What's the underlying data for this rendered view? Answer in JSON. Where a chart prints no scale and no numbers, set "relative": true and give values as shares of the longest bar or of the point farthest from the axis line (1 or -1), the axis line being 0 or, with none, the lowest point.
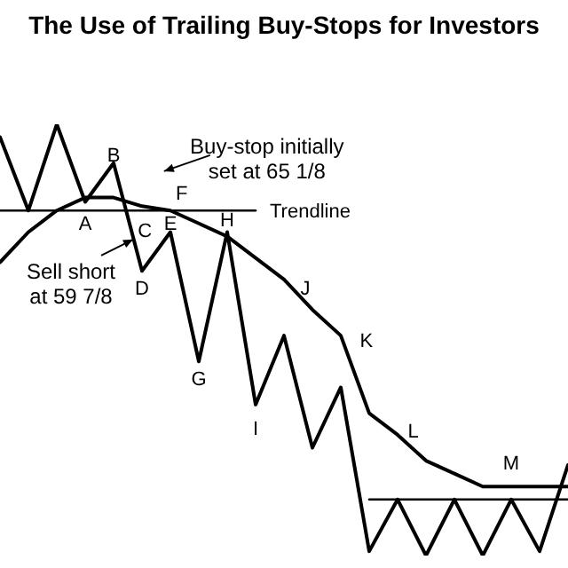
{
  "chart_data": {
    "type": "line",
    "title": "The Use of Trailing Buy-Stops for Investors",
    "relative": true,
    "legend": false,
    "marker": "none",
    "line_style": "solid",
    "categories": [
      null,
      null,
      null,
      null,
      null,
      null,
      null,
      null,
      null,
      null,
      null,
      null,
      null,
      null,
      null,
      null,
      null,
      null,
      null,
      null,
      null
    ],
    "series": [
      {
        "color": "#000000",
        "values": [
          0.97,
          0.8,
          1,
          0.82,
          0.91,
          0.66,
          0.75,
          0.45,
          0.75,
          0.35,
          0.51,
          0.25,
          0.39,
          0.01,
          0.13,
          0,
          0.13,
          0,
          0.13,
          0.01,
          0.21
        ]
      },
      {
        "color": "#000000",
        "values": [
          0.68,
          0.75,
          0.8,
          0.83,
          0.83,
          0.81,
          0.8,
          0.77,
          0.74,
          0.69,
          0.64,
          0.57,
          0.51,
          0.33,
          0.28,
          0.22,
          0.19,
          0.16,
          0.16,
          0.16,
          0.16
        ]
      },
      {
        "name": "Trendline",
        "color": "#000000",
        "values": [
          0.8,
          0.8,
          0.8,
          0.8,
          0.8,
          0.8,
          0.8,
          0.8,
          0.8,
          0.8,
          null,
          null,
          null,
          null,
          null,
          null,
          null,
          null,
          null,
          null,
          null
        ]
      },
      {
        "color": "#000000",
        "values": [
          null,
          null,
          null,
          null,
          null,
          null,
          null,
          null,
          null,
          null,
          null,
          null,
          null,
          0.13,
          0.13,
          0.13,
          0.13,
          0.13,
          0.13,
          0.13,
          0.13
        ]
      }
    ],
    "annotations": [
      "A",
      "B",
      "C",
      "D",
      "E",
      "F",
      "G",
      "H",
      "I",
      "J",
      "K",
      "L",
      "M",
      "Buy-stop initially\nset at 65 1/8",
      "Sell short\nat 59 7/8"
    ]
  }
}
